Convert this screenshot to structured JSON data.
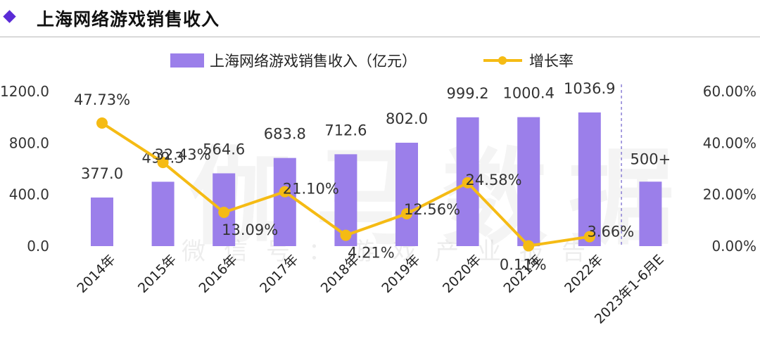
{
  "header": {
    "title": "上海网络游戏销售收入"
  },
  "watermark": {
    "main": "伽马数据",
    "sub": "微信号：游戏产业报告"
  },
  "colors": {
    "bar": "#9b7fea",
    "line": "#f5bb14",
    "accent": "#5a2bd6"
  },
  "chart_data": {
    "type": "bar",
    "categories": [
      "2014年",
      "2015年",
      "2016年",
      "2017年",
      "2018年",
      "2019年",
      "2020年",
      "2021年",
      "2022年",
      "2023年1-6月E"
    ],
    "series": [
      {
        "name": "上海网络游戏销售收入（亿元）",
        "type": "bar",
        "axis": "left",
        "values": [
          377.0,
          499.3,
          564.6,
          683.8,
          712.6,
          802.0,
          999.2,
          1000.4,
          1036.9,
          500
        ],
        "labels": [
          "377.0",
          "499.3",
          "564.6",
          "683.8",
          "712.6",
          "802.0",
          "999.2",
          "1000.4",
          "1036.9",
          "500+"
        ]
      },
      {
        "name": "增长率",
        "type": "line",
        "axis": "right",
        "values": [
          47.73,
          32.43,
          13.09,
          21.1,
          4.21,
          12.56,
          24.58,
          0.11,
          3.66,
          null
        ],
        "labels": [
          "47.73%",
          "32.43%",
          "13.09%",
          "21.10%",
          "4.21%",
          "12.56%",
          "24.58%",
          "0.11%",
          "3.66%",
          null
        ]
      }
    ],
    "y_left": {
      "min": 0,
      "max": 1200,
      "ticks": [
        "0.0",
        "400.0",
        "800.0",
        "1200.0"
      ]
    },
    "y_right": {
      "min": 0,
      "max": 60,
      "ticks": [
        "0.00%",
        "20.00%",
        "40.00%",
        "60.00%"
      ]
    },
    "legend_position": "top-center",
    "grid": false
  }
}
